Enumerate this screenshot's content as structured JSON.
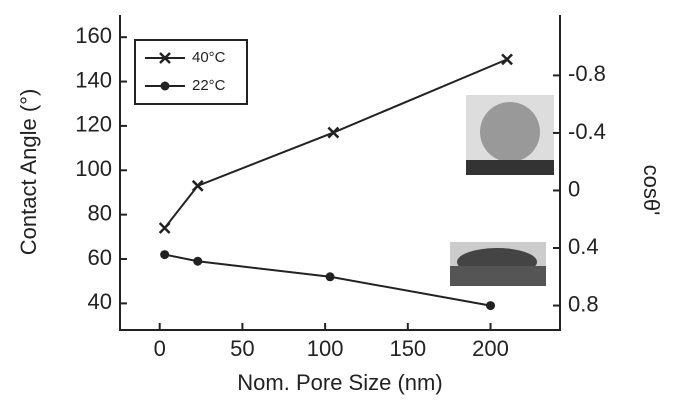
{
  "chart_data": {
    "type": "line",
    "x_label": "Nom. Pore Size (nm)",
    "y_label": "Contact Angle (°)",
    "y2_label": "cosθ'",
    "xlim": [
      -24,
      242
    ],
    "xticks": [
      0,
      50,
      100,
      150,
      200
    ],
    "ylim": [
      28,
      170
    ],
    "yticks": [
      40,
      60,
      80,
      100,
      120,
      140,
      160
    ],
    "y2lim": [
      0.97,
      -1.22
    ],
    "y2ticks": [
      -0.8,
      -0.4,
      0,
      0.4,
      0.8
    ],
    "legend": "upper left",
    "series": [
      {
        "name": "40°C",
        "color": "#222222",
        "marker": "x",
        "x": [
          3,
          23,
          105,
          210
        ],
        "values": [
          74,
          93,
          117,
          150
        ]
      },
      {
        "name": "22°C",
        "color": "#222222",
        "marker": "o",
        "x": [
          3,
          23,
          103,
          200
        ],
        "values": [
          62,
          59,
          52,
          39
        ]
      }
    ]
  }
}
